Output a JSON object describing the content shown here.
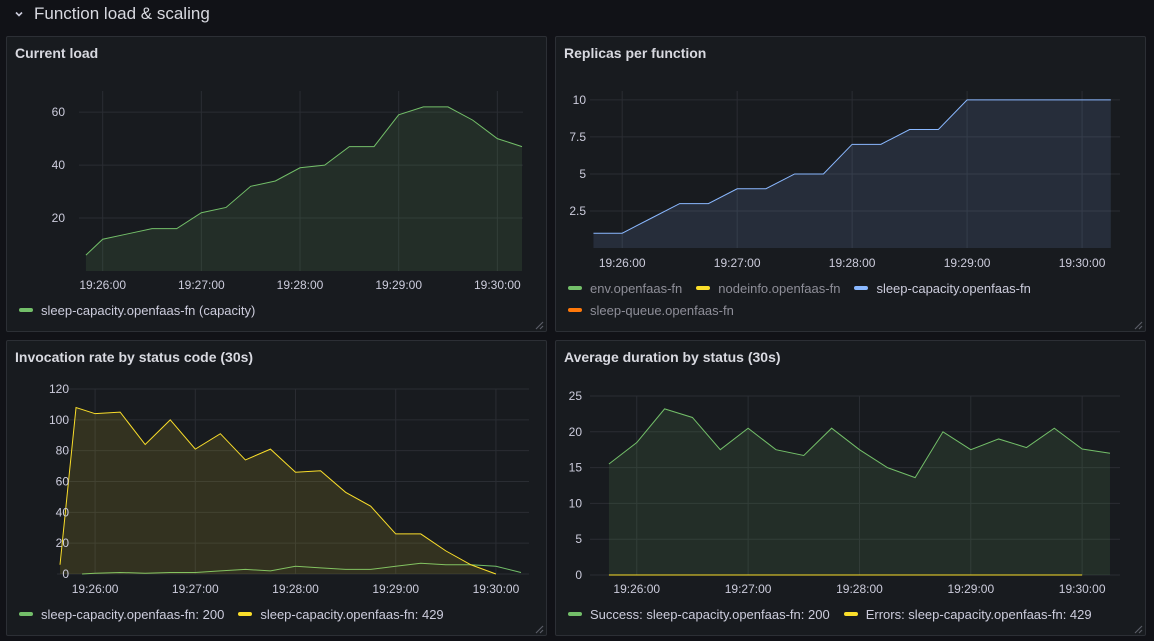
{
  "row": {
    "title": "Function load & scaling",
    "collapse_icon": "chevron-down-icon"
  },
  "colors": {
    "green": "#73bf69",
    "yellow": "#fade2a",
    "blue": "#8ab8ff",
    "orange": "#ff780a",
    "grid": "#2a2d33",
    "axis_text": "#ccccdc",
    "panel_bg": "#181b1f"
  },
  "panels": [
    {
      "id": "current-load",
      "title": "Current load",
      "legend": [
        {
          "label": "sleep-capacity.openfaas-fn (capacity)",
          "color": "#73bf69",
          "dim": false
        }
      ]
    },
    {
      "id": "replicas",
      "title": "Replicas per function",
      "legend": [
        {
          "label": "env.openfaas-fn",
          "color": "#73bf69",
          "dim": true
        },
        {
          "label": "nodeinfo.openfaas-fn",
          "color": "#fade2a",
          "dim": true
        },
        {
          "label": "sleep-capacity.openfaas-fn",
          "color": "#8ab8ff",
          "dim": false
        },
        {
          "label": "sleep-queue.openfaas-fn",
          "color": "#ff780a",
          "dim": true
        }
      ]
    },
    {
      "id": "invocation-rate",
      "title": "Invocation rate by status code (30s)",
      "legend": [
        {
          "label": "sleep-capacity.openfaas-fn: 200",
          "color": "#73bf69",
          "dim": false
        },
        {
          "label": "sleep-capacity.openfaas-fn: 429",
          "color": "#fade2a",
          "dim": false
        }
      ]
    },
    {
      "id": "avg-duration",
      "title": "Average duration by status (30s)",
      "legend": [
        {
          "label": "Success: sleep-capacity.openfaas-fn: 200",
          "color": "#73bf69",
          "dim": false
        },
        {
          "label": "Errors: sleep-capacity.openfaas-fn: 429",
          "color": "#fade2a",
          "dim": false
        }
      ]
    }
  ],
  "chart_data": [
    {
      "panel": "current-load",
      "type": "area",
      "title": "Current load",
      "xlabel": "",
      "ylabel": "",
      "x_ticks": [
        "19:26:00",
        "19:27:00",
        "19:28:00",
        "19:29:00",
        "19:30:00"
      ],
      "x_tick_minutes": [
        26,
        27,
        28,
        29,
        30
      ],
      "xlim_minutes": [
        25.76,
        30.26
      ],
      "y_ticks": [
        "20",
        "40",
        "60"
      ],
      "y_tick_values": [
        20,
        40,
        60
      ],
      "ylim": [
        0,
        68
      ],
      "grid": true,
      "legend_position": "bottom",
      "series": [
        {
          "name": "sleep-capacity.openfaas-fn (capacity)",
          "color": "#73bf69",
          "fill": true,
          "x_minutes": [
            25.83,
            26.0,
            26.25,
            26.5,
            26.75,
            27.0,
            27.25,
            27.5,
            27.75,
            28.0,
            28.25,
            28.5,
            28.75,
            29.0,
            29.25,
            29.5,
            29.75,
            30.0,
            30.25
          ],
          "values": [
            6,
            12,
            14,
            16,
            16,
            22,
            24,
            32,
            34,
            39,
            40,
            47,
            47,
            59,
            62,
            62,
            57,
            50,
            47
          ]
        }
      ]
    },
    {
      "panel": "replicas",
      "type": "line",
      "title": "Replicas per function",
      "xlabel": "",
      "ylabel": "",
      "x_ticks": [
        "19:26:00",
        "19:27:00",
        "19:28:00",
        "19:29:00",
        "19:30:00"
      ],
      "x_tick_minutes": [
        26,
        27,
        28,
        29,
        30
      ],
      "xlim_minutes": [
        25.72,
        30.33
      ],
      "y_ticks": [
        "2.5",
        "5",
        "7.5",
        "10"
      ],
      "y_tick_values": [
        2.5,
        5,
        7.5,
        10
      ],
      "ylim": [
        0,
        10.6
      ],
      "grid": true,
      "legend_position": "bottom",
      "series": [
        {
          "name": "sleep-capacity.openfaas-fn",
          "color": "#8ab8ff",
          "fill": true,
          "x_minutes": [
            25.75,
            26.0,
            26.25,
            26.5,
            26.75,
            27.0,
            27.25,
            27.5,
            27.75,
            28.0,
            28.25,
            28.5,
            28.75,
            29.0,
            29.25,
            29.5,
            29.75,
            30.0,
            30.25
          ],
          "values": [
            1,
            1,
            2,
            3,
            3,
            4,
            4,
            5,
            5,
            7,
            7,
            8,
            8,
            10,
            10,
            10,
            10,
            10,
            10
          ]
        }
      ]
    },
    {
      "panel": "invocation-rate",
      "type": "area",
      "title": "Invocation rate by status code (30s)",
      "xlabel": "",
      "ylabel": "",
      "x_ticks": [
        "19:26:00",
        "19:27:00",
        "19:28:00",
        "19:29:00",
        "19:30:00"
      ],
      "x_tick_minutes": [
        26,
        27,
        28,
        29,
        30
      ],
      "xlim_minutes": [
        25.62,
        30.33
      ],
      "y_ticks": [
        "0",
        "20",
        "40",
        "60",
        "80",
        "100",
        "120"
      ],
      "y_tick_values": [
        0,
        20,
        40,
        60,
        80,
        100,
        120
      ],
      "ylim": [
        0,
        120
      ],
      "grid": true,
      "legend_position": "bottom",
      "series": [
        {
          "name": "sleep-capacity.openfaas-fn: 200",
          "color": "#73bf69",
          "fill": false,
          "x_minutes": [
            25.87,
            26.0,
            26.25,
            26.5,
            26.75,
            27.0,
            27.25,
            27.5,
            27.75,
            28.0,
            28.25,
            28.5,
            28.75,
            29.0,
            29.25,
            29.5,
            29.75,
            30.0,
            30.25
          ],
          "values": [
            0,
            0.5,
            1,
            0.5,
            1,
            1,
            2,
            3,
            2,
            5,
            4,
            3,
            3,
            5,
            7,
            6,
            6,
            5,
            1
          ]
        },
        {
          "name": "sleep-capacity.openfaas-fn: 429",
          "color": "#fade2a",
          "fill": true,
          "x_minutes": [
            25.65,
            25.81,
            26.0,
            26.25,
            26.5,
            26.75,
            27.0,
            27.25,
            27.5,
            27.75,
            28.0,
            28.25,
            28.5,
            28.75,
            29.0,
            29.25,
            29.5,
            29.75,
            30.0
          ],
          "values": [
            6,
            108,
            104,
            105,
            84,
            100,
            81,
            91,
            74,
            81,
            66,
            67,
            53,
            44,
            26,
            26,
            15,
            6,
            0
          ]
        }
      ]
    },
    {
      "panel": "avg-duration",
      "type": "line",
      "title": "Average duration by status (30s)",
      "xlabel": "",
      "ylabel": "",
      "x_ticks": [
        "19:26:00",
        "19:27:00",
        "19:28:00",
        "19:29:00",
        "19:30:00"
      ],
      "x_tick_minutes": [
        26,
        27,
        28,
        29,
        30
      ],
      "xlim_minutes": [
        25.58,
        30.34
      ],
      "y_ticks": [
        "0",
        "5",
        "10",
        "15",
        "20",
        "25"
      ],
      "y_tick_values": [
        0,
        5,
        10,
        15,
        20,
        25
      ],
      "ylim": [
        0,
        25
      ],
      "grid": true,
      "legend_position": "bottom",
      "series": [
        {
          "name": "Success: sleep-capacity.openfaas-fn: 200",
          "color": "#73bf69",
          "fill": true,
          "x_minutes": [
            25.75,
            26.0,
            26.25,
            26.5,
            26.75,
            27.0,
            27.25,
            27.5,
            27.75,
            28.0,
            28.25,
            28.5,
            28.75,
            29.0,
            29.25,
            29.5,
            29.75,
            30.0,
            30.25
          ],
          "values": [
            15.5,
            18.5,
            23.2,
            22,
            17.5,
            20.5,
            17.5,
            16.7,
            20.5,
            17.5,
            15,
            13.6,
            20,
            17.5,
            19,
            17.8,
            20.5,
            17.6,
            17
          ]
        },
        {
          "name": "Errors: sleep-capacity.openfaas-fn: 429",
          "color": "#fade2a",
          "fill": false,
          "x_minutes": [
            25.75,
            26.0,
            26.5,
            27.0,
            27.5,
            28.0,
            28.5,
            29.0,
            29.5,
            30.0
          ],
          "values": [
            0,
            0,
            0,
            0,
            0,
            0,
            0,
            0,
            0,
            0
          ]
        }
      ]
    }
  ]
}
